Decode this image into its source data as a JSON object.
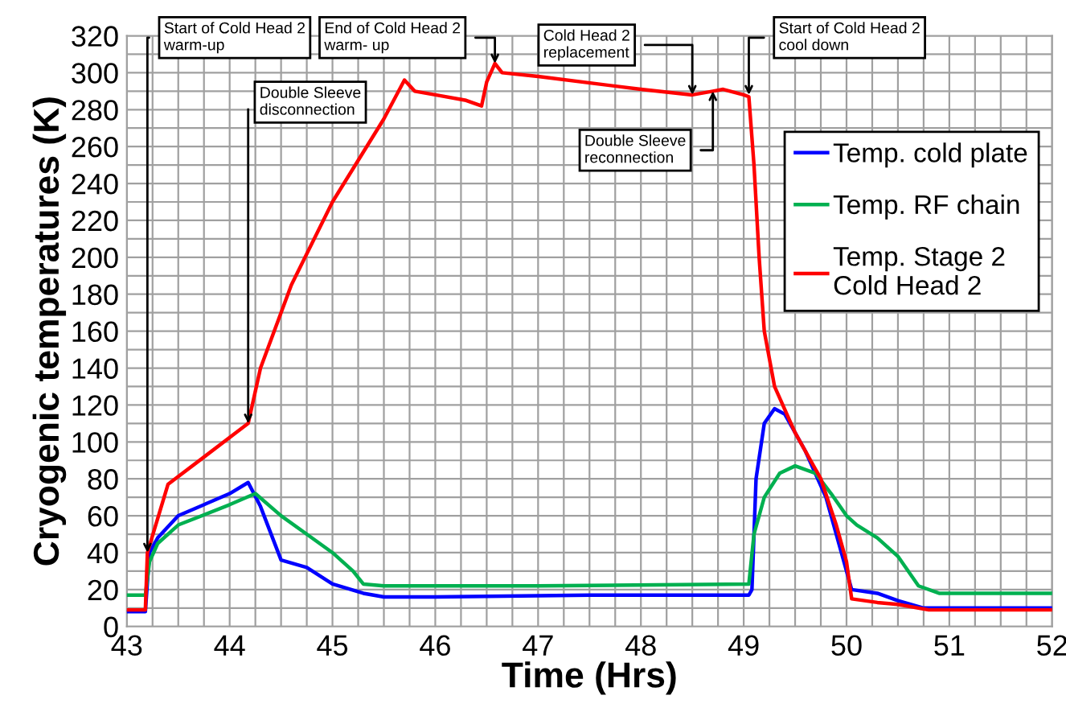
{
  "chart_data": {
    "type": "line",
    "xlabel": "Time (Hrs)",
    "ylabel": "Cryogenic temperatures (K)",
    "xlim": [
      43,
      52
    ],
    "xticks": [
      43,
      44,
      45,
      46,
      47,
      48,
      49,
      50,
      51,
      52
    ],
    "ylim": [
      0,
      320
    ],
    "yticks": [
      0,
      20,
      40,
      60,
      80,
      100,
      120,
      140,
      160,
      180,
      200,
      220,
      240,
      260,
      280,
      300,
      320
    ],
    "grid": true,
    "legend": "top right",
    "line_style": "solid",
    "marker": "none",
    "series": [
      {
        "name": "Temp. cold plate",
        "color": "#0000ff",
        "x": [
          43,
          43.18,
          43.22,
          43.3,
          43.5,
          44.0,
          44.18,
          44.3,
          44.5,
          44.75,
          45.0,
          45.3,
          45.5,
          46,
          47.5,
          49.05,
          49.08,
          49.12,
          49.2,
          49.3,
          49.4,
          49.6,
          49.8,
          49.95,
          50.05,
          50.3,
          50.5,
          50.75,
          52
        ],
        "values": [
          8,
          8,
          40,
          48,
          60,
          72,
          78,
          65,
          36,
          32,
          23,
          18,
          16,
          16,
          17,
          17,
          20,
          80,
          110,
          118,
          115,
          95,
          70,
          40,
          20,
          18,
          14,
          10,
          10
        ]
      },
      {
        "name": "Temp. RF chain",
        "color": "#00b050",
        "x": [
          43,
          43.18,
          43.22,
          43.3,
          43.5,
          44.0,
          44.25,
          44.5,
          44.75,
          45.0,
          45.2,
          45.3,
          45.5,
          47,
          49.05,
          49.1,
          49.2,
          49.35,
          49.5,
          49.7,
          49.85,
          50.0,
          50.1,
          50.3,
          50.5,
          50.7,
          50.9,
          52
        ],
        "values": [
          17,
          17,
          35,
          45,
          55,
          66,
          72,
          60,
          50,
          40,
          30,
          23,
          22,
          22,
          23,
          50,
          70,
          83,
          87,
          83,
          72,
          60,
          55,
          48,
          38,
          22,
          18,
          18
        ]
      },
      {
        "name": "Temp. Stage 2\nCold Head 2",
        "color": "#ff0000",
        "x": [
          43,
          43.18,
          43.2,
          43.4,
          44.18,
          44.3,
          44.6,
          45.0,
          45.5,
          45.7,
          45.8,
          46.0,
          46.3,
          46.45,
          46.5,
          46.58,
          46.65,
          47,
          48,
          48.5,
          48.7,
          48.8,
          49.0,
          49.05,
          49.1,
          49.15,
          49.2,
          49.3,
          49.5,
          49.75,
          49.9,
          50.0,
          50.05,
          50.3,
          50.5,
          50.8,
          52
        ],
        "values": [
          9,
          9,
          40,
          77,
          110,
          140,
          185,
          230,
          275,
          296,
          290,
          288,
          285,
          282,
          295,
          305,
          300,
          298,
          291,
          288,
          290,
          291,
          288,
          287,
          250,
          200,
          160,
          130,
          105,
          80,
          55,
          35,
          15,
          13,
          12,
          9,
          9
        ]
      }
    ],
    "annotations": [
      {
        "text": "Start of Cold Head 2\nwarm-up",
        "x": 43.2,
        "y": 40
      },
      {
        "text": "Double Sleeve\ndisconnection",
        "x": 44.18,
        "y": 110
      },
      {
        "text": "End of Cold Head 2\nwarm- up",
        "x": 46.58,
        "y": 305
      },
      {
        "text": "Cold Head 2\nreplacement",
        "x": 48.5,
        "y": 288
      },
      {
        "text": "Double Sleeve\nreconnection",
        "x": 48.7,
        "y": 290
      },
      {
        "text": "Start of Cold Head 2\ncool down",
        "x": 49.05,
        "y": 288
      }
    ]
  }
}
